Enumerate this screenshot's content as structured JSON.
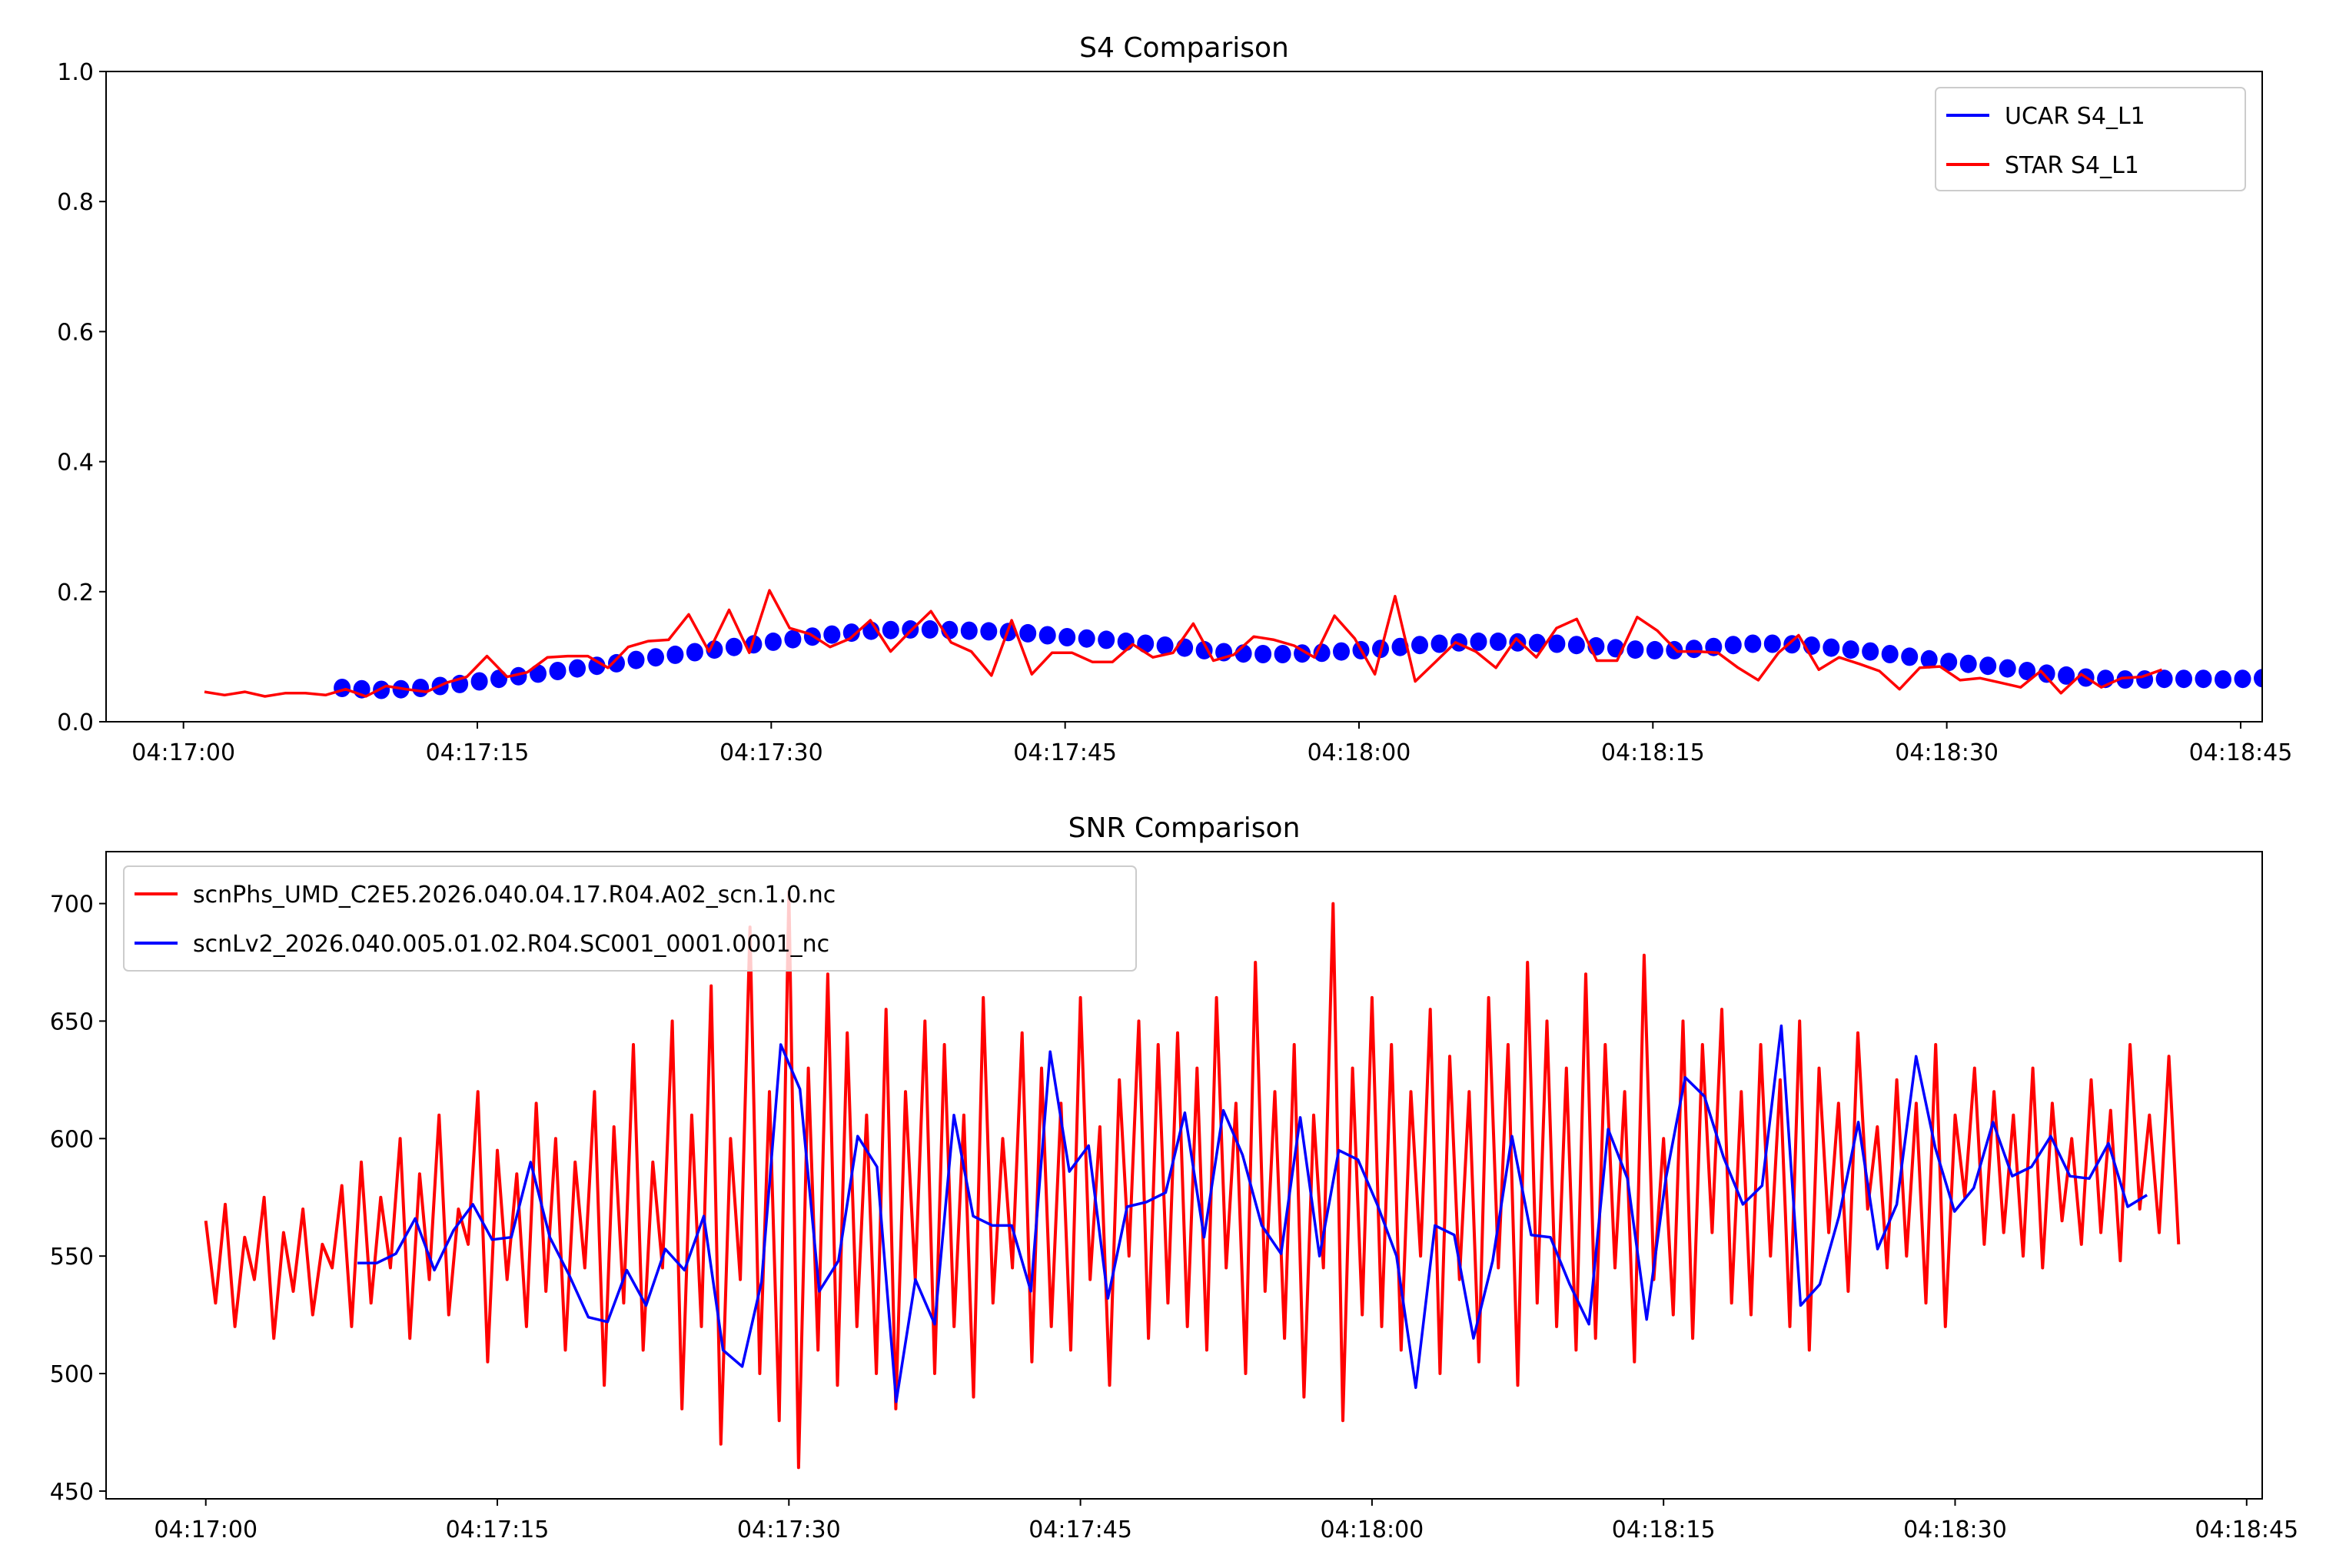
{
  "chart_data": [
    {
      "type": "scatter+line",
      "title": "S4 Comparison",
      "xlabel": "",
      "ylabel": "",
      "xlim_s": [
        -3.95,
        106.1
      ],
      "ylim": [
        0.0,
        1.0
      ],
      "grid": false,
      "x_ticks": [
        "04:17:00",
        "04:17:15",
        "04:17:30",
        "04:17:45",
        "04:18:00",
        "04:18:15",
        "04:18:30",
        "04:18:45"
      ],
      "x_ticks_s": [
        0,
        15,
        30,
        45,
        60,
        75,
        90,
        105
      ],
      "y_ticks": [
        "0.0",
        "0.2",
        "0.4",
        "0.6",
        "0.8",
        "1.0"
      ],
      "y_ticks_v": [
        0,
        0.2,
        0.4,
        0.6,
        0.8,
        1.0
      ],
      "legend_position": "top-right",
      "series": [
        {
          "name": "UCAR S4_L1",
          "color": "#0000ff",
          "style": "markers",
          "t_start_s": 8.1,
          "t_step_s": 1.0,
          "values": [
            0.052,
            0.05,
            0.049,
            0.05,
            0.052,
            0.055,
            0.058,
            0.062,
            0.066,
            0.07,
            0.074,
            0.078,
            0.082,
            0.086,
            0.09,
            0.095,
            0.099,
            0.103,
            0.107,
            0.111,
            0.115,
            0.119,
            0.123,
            0.127,
            0.131,
            0.134,
            0.137,
            0.14,
            0.141,
            0.142,
            0.142,
            0.141,
            0.14,
            0.139,
            0.138,
            0.136,
            0.133,
            0.13,
            0.128,
            0.126,
            0.123,
            0.12,
            0.117,
            0.114,
            0.11,
            0.107,
            0.105,
            0.104,
            0.104,
            0.105,
            0.106,
            0.108,
            0.11,
            0.112,
            0.115,
            0.118,
            0.12,
            0.122,
            0.123,
            0.123,
            0.122,
            0.121,
            0.12,
            0.118,
            0.116,
            0.113,
            0.111,
            0.11,
            0.11,
            0.112,
            0.115,
            0.118,
            0.12,
            0.12,
            0.119,
            0.117,
            0.114,
            0.111,
            0.108,
            0.104,
            0.1,
            0.096,
            0.092,
            0.089,
            0.086,
            0.082,
            0.078,
            0.074,
            0.071,
            0.068,
            0.066,
            0.065,
            0.065,
            0.066,
            0.066,
            0.066,
            0.065,
            0.066,
            0.067,
            0.068
          ]
        },
        {
          "name": "STAR S4_L1",
          "color": "#ff0000",
          "style": "line",
          "t_start_s": 1.07,
          "t_step_s": 1.03,
          "values": [
            0.046,
            0.041,
            0.046,
            0.039,
            0.044,
            0.044,
            0.041,
            0.05,
            0.039,
            0.055,
            0.05,
            0.046,
            0.06,
            0.069,
            0.101,
            0.069,
            0.076,
            0.099,
            0.101,
            0.101,
            0.083,
            0.115,
            0.124,
            0.126,
            0.165,
            0.108,
            0.172,
            0.106,
            0.202,
            0.144,
            0.135,
            0.115,
            0.128,
            0.156,
            0.108,
            0.14,
            0.17,
            0.122,
            0.108,
            0.071,
            0.156,
            0.073,
            0.106,
            0.106,
            0.092,
            0.092,
            0.119,
            0.099,
            0.106,
            0.151,
            0.094,
            0.103,
            0.131,
            0.126,
            0.117,
            0.099,
            0.163,
            0.128,
            0.073,
            0.193,
            0.062,
            0.092,
            0.122,
            0.108,
            0.083,
            0.128,
            0.099,
            0.144,
            0.158,
            0.094,
            0.094,
            0.161,
            0.14,
            0.108,
            0.108,
            0.106,
            0.083,
            0.064,
            0.106,
            0.133,
            0.08,
            0.099,
            0.089,
            0.078,
            0.05,
            0.083,
            0.085,
            0.064,
            0.067,
            0.06,
            0.053,
            0.078,
            0.044,
            0.073,
            0.053,
            0.067,
            0.069,
            0.08
          ]
        }
      ]
    },
    {
      "type": "line",
      "title": "SNR Comparison",
      "xlabel": "",
      "ylabel": "",
      "xlim_s": [
        -5.13,
        105.8
      ],
      "ylim": [
        446.7,
        722.1
      ],
      "grid": false,
      "x_ticks": [
        "04:17:00",
        "04:17:15",
        "04:17:30",
        "04:17:45",
        "04:18:00",
        "04:18:15",
        "04:18:30",
        "04:18:45"
      ],
      "x_ticks_s": [
        0,
        15,
        30,
        45,
        60,
        75,
        90,
        105
      ],
      "y_ticks": [
        "450",
        "500",
        "550",
        "600",
        "650",
        "700"
      ],
      "y_ticks_v": [
        450,
        500,
        550,
        600,
        650,
        700
      ],
      "legend_position": "top-left",
      "series": [
        {
          "name": "scnPhs_UMD_C2E5.2026.040.04.17.R04.A02_scn.1.0.nc",
          "color": "#ff0000",
          "t_start_s": 0,
          "t_step_s": 0.5,
          "values": [
            565,
            530,
            572,
            520,
            558,
            540,
            575,
            515,
            560,
            535,
            570,
            525,
            555,
            545,
            580,
            520,
            590,
            530,
            575,
            545,
            600,
            515,
            585,
            540,
            610,
            525,
            570,
            555,
            620,
            505,
            595,
            540,
            585,
            520,
            615,
            535,
            600,
            510,
            590,
            545,
            620,
            495,
            605,
            530,
            640,
            510,
            590,
            545,
            650,
            485,
            610,
            520,
            665,
            470,
            600,
            540,
            690,
            500,
            620,
            480,
            705,
            460,
            630,
            510,
            670,
            495,
            645,
            520,
            610,
            500,
            655,
            485,
            620,
            540,
            650,
            500,
            640,
            520,
            610,
            490,
            660,
            530,
            600,
            545,
            645,
            505,
            630,
            520,
            615,
            510,
            660,
            540,
            605,
            495,
            625,
            550,
            650,
            515,
            640,
            530,
            645,
            520,
            630,
            510,
            660,
            545,
            615,
            500,
            675,
            535,
            620,
            515,
            640,
            490,
            610,
            545,
            700,
            480,
            630,
            525,
            660,
            520,
            640,
            510,
            620,
            550,
            655,
            500,
            635,
            540,
            620,
            505,
            660,
            545,
            640,
            495,
            675,
            530,
            650,
            520,
            630,
            510,
            670,
            515,
            640,
            545,
            620,
            505,
            678,
            540,
            600,
            525,
            650,
            515,
            640,
            560,
            655,
            530,
            620,
            525,
            640,
            550,
            625,
            520,
            650,
            510,
            630,
            560,
            615,
            535,
            645,
            570,
            605,
            545,
            625,
            550,
            615,
            530,
            640,
            520,
            610,
            575,
            630,
            555,
            620,
            560,
            610,
            550,
            630,
            545,
            615,
            565,
            600,
            555,
            625,
            560,
            612,
            548,
            640,
            570,
            610,
            560,
            635,
            555
          ]
        },
        {
          "name": "scnLv2_2026.040.005.01.02.R04.SC001_0001.0001_nc",
          "color": "#0000ff",
          "t_start_s": 7.8,
          "t_step_s": 0.99,
          "values": [
            547,
            547,
            551,
            566,
            544,
            561,
            572,
            557,
            558,
            590,
            558,
            542,
            524,
            522,
            544,
            529,
            553,
            544,
            567,
            510,
            503,
            539,
            640,
            621,
            535,
            548,
            601,
            588,
            488,
            540,
            521,
            610,
            567,
            563,
            563,
            535,
            637,
            586,
            597,
            532,
            571,
            573,
            577,
            611,
            558,
            612,
            593,
            563,
            551,
            609,
            550,
            595,
            591,
            572,
            550,
            494,
            563,
            559,
            515,
            548,
            601,
            559,
            558,
            538,
            521,
            604,
            583,
            523,
            583,
            626,
            618,
            592,
            572,
            580,
            648,
            529,
            538,
            567,
            607,
            553,
            572,
            635,
            596,
            569,
            579,
            607,
            584,
            588,
            601,
            584,
            583,
            598,
            571,
            576
          ]
        }
      ]
    }
  ]
}
